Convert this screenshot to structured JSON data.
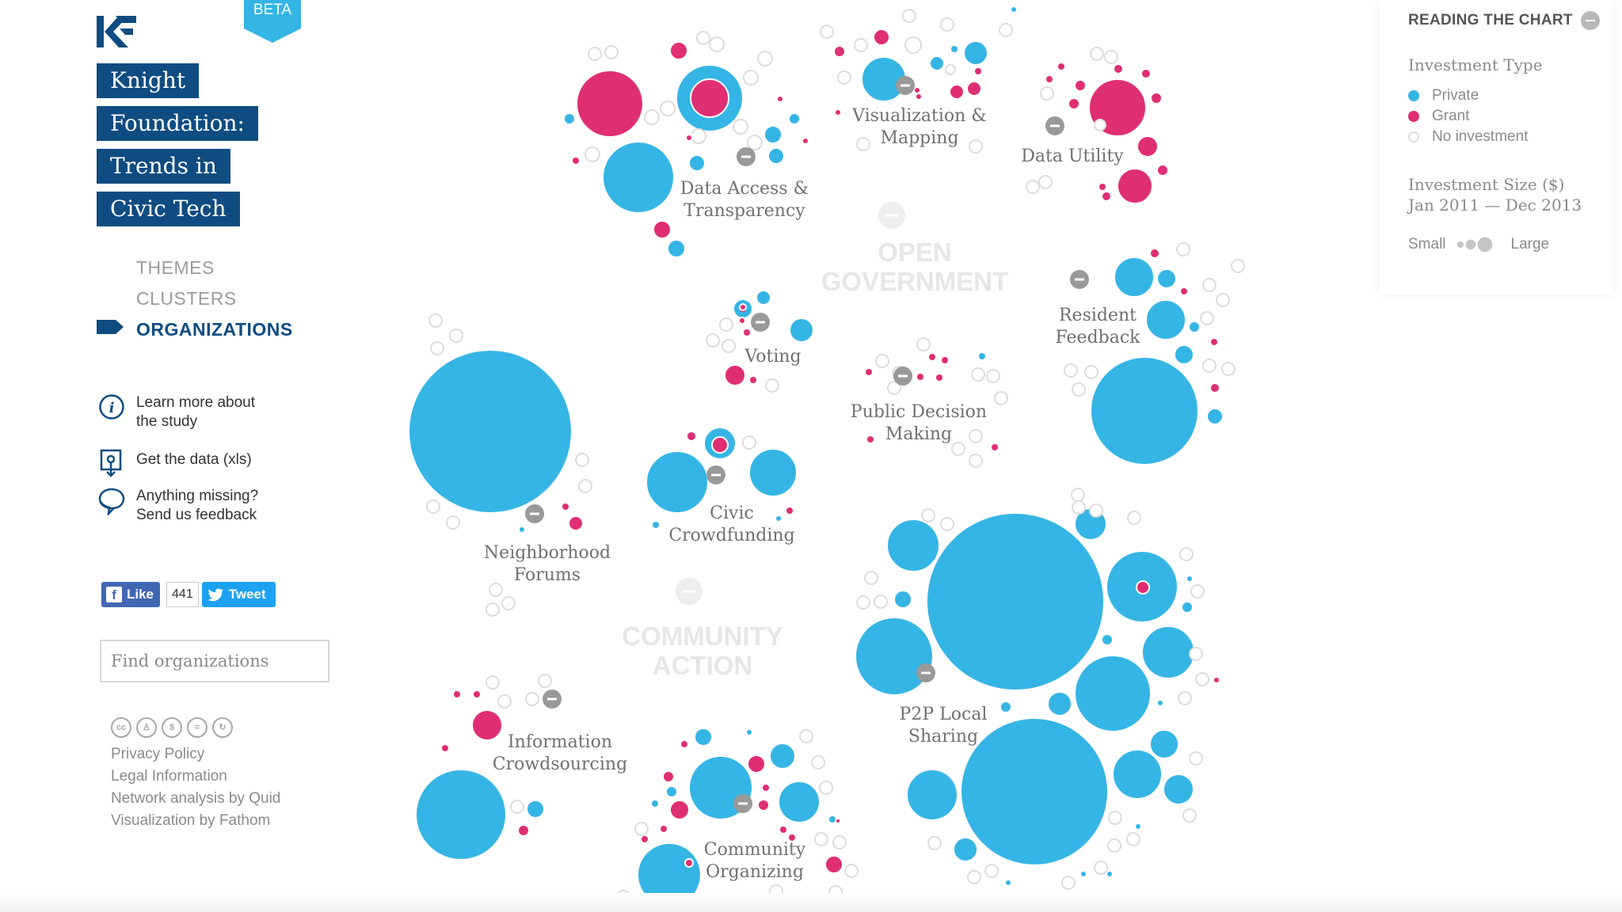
{
  "beta_label": "BETA",
  "title_lines": [
    "Knight",
    "Foundation:",
    "Trends in",
    "Civic Tech"
  ],
  "nav": {
    "themes": "THEMES",
    "clusters": "CLUSTERS",
    "organizations": "ORGANIZATIONS",
    "active": "organizations"
  },
  "links": {
    "learn": [
      "Learn more about",
      "the study"
    ],
    "data": [
      "Get the data (xls)"
    ],
    "feedback": [
      "Anything missing?",
      "Send us feedback"
    ]
  },
  "social": {
    "like_label": "Like",
    "like_count": "441",
    "tweet_label": "Tweet"
  },
  "search": {
    "placeholder": "Find organizations",
    "value": ""
  },
  "footer": {
    "links": [
      "Privacy Policy",
      "Legal Information",
      "Network analysis by Quid",
      "Visualization by Fathom"
    ],
    "license_icons": [
      "cc-icon",
      "by-icon",
      "nc-icon",
      "nd-icon",
      "sa-icon"
    ]
  },
  "legend": {
    "header": "READING THE CHART",
    "investment_type_title": "Investment Type",
    "types": [
      {
        "label": "Private",
        "color": "#35b5e5"
      },
      {
        "label": "Grant",
        "color": "#df2e73"
      },
      {
        "label": "No investment",
        "color": "#ffffff"
      }
    ],
    "size_title": [
      "Investment Size ($)",
      "Jan 2011 — Dec 2013"
    ],
    "size_small": "Small",
    "size_large": "Large"
  },
  "colors": {
    "private": "#35b5e5",
    "grant": "#df2e73",
    "none_stroke": "#dcdcdc",
    "brand": "#0f4c81",
    "theme_label": "#e6e6e6",
    "cluster_label": "#707070",
    "node_toggle": "#999999"
  },
  "themes": [
    {
      "name": [
        "OPEN",
        "GOVERNMENT"
      ]
    },
    {
      "name": [
        "COMMUNITY",
        "ACTION"
      ]
    }
  ],
  "clusters": [
    {
      "label": [
        "Data Access &",
        "Transparency"
      ]
    },
    {
      "label": [
        "Visualization &",
        "Mapping"
      ]
    },
    {
      "label": [
        "Data Utility"
      ]
    },
    {
      "label": [
        "Resident",
        "Feedback"
      ]
    },
    {
      "label": [
        "Voting"
      ]
    },
    {
      "label": [
        "Public Decision",
        "Making"
      ]
    },
    {
      "label": [
        "Neighborhood",
        "Forums"
      ]
    },
    {
      "label": [
        "Civic",
        "Crowdfunding"
      ]
    },
    {
      "label": [
        "P2P Local",
        "Sharing"
      ]
    },
    {
      "label": [
        "Information",
        "Crowdsourcing"
      ]
    },
    {
      "label": [
        "Community",
        "Organizing"
      ]
    }
  ]
}
